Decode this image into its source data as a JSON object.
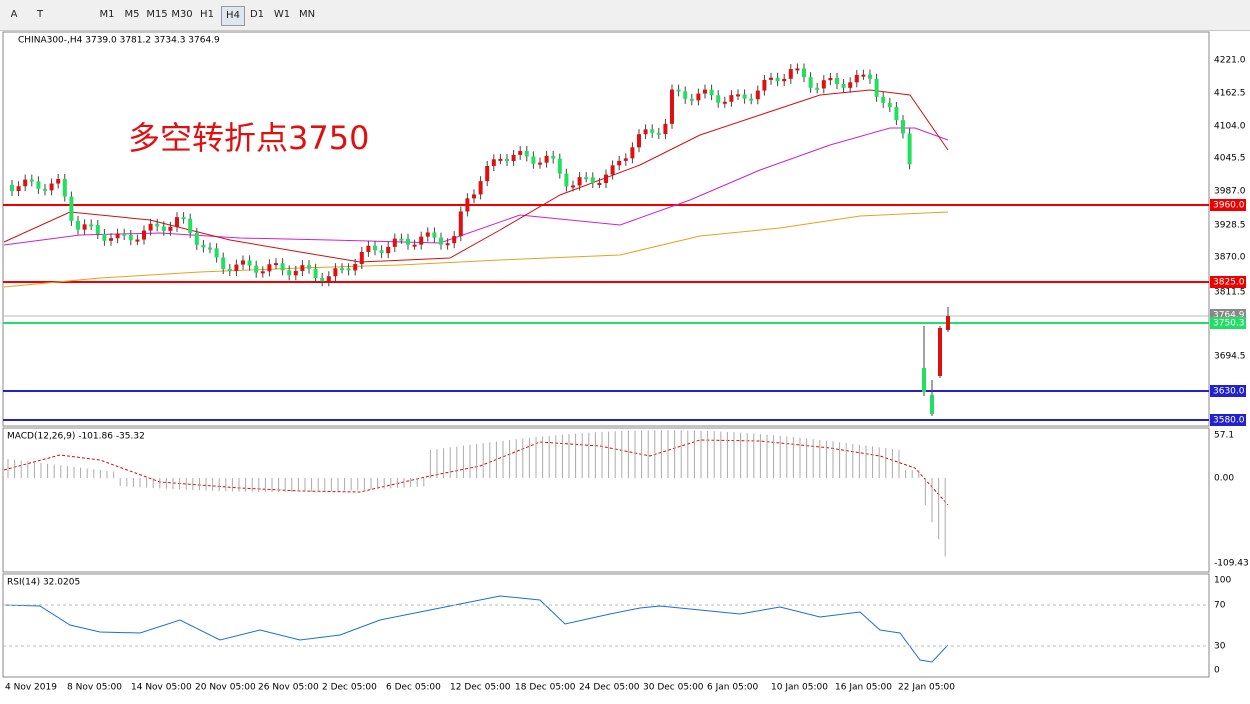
{
  "toolbar": {
    "tools": [
      "A",
      "T"
    ],
    "timeframes": [
      "M1",
      "M5",
      "M15",
      "M30",
      "H1",
      "H4",
      "D1",
      "W1",
      "MN"
    ],
    "selected": "H4"
  },
  "chart": {
    "header": "CHINA300-,H4  3739.0 3781.2 3734.3 3764.9",
    "annotation": "多空转折点3750",
    "price_axis": [
      "4221.0",
      "4162.5",
      "4104.0",
      "4045.5",
      "3987.0",
      "3928.5",
      "3870.0",
      "3811.5",
      "3694.5"
    ],
    "levels": [
      "3960.0",
      "3825.0",
      "3764.9",
      "3750.3",
      "3630.0",
      "3580.0"
    ],
    "macd": {
      "label": "MACD(12,26,9) -101.86 -35.32",
      "ticks": [
        "57.1",
        "0.00",
        "-109.43"
      ]
    },
    "rsi": {
      "label": "RSI(14) 32.0205",
      "ticks": [
        "100",
        "70",
        "30",
        "0"
      ]
    },
    "time_axis": [
      "4 Nov 2019",
      "8 Nov 05:00",
      "14 Nov 05:00",
      "20 Nov 05:00",
      "26 Nov 05:00",
      "2 Dec 05:00",
      "6 Dec 05:00",
      "12 Dec 05:00",
      "18 Dec 05:00",
      "24 Dec 05:00",
      "30 Dec 05:00",
      "6 Jan 05:00",
      "10 Jan 05:00",
      "16 Jan 05:00",
      "22 Jan 05:00"
    ]
  }
}
